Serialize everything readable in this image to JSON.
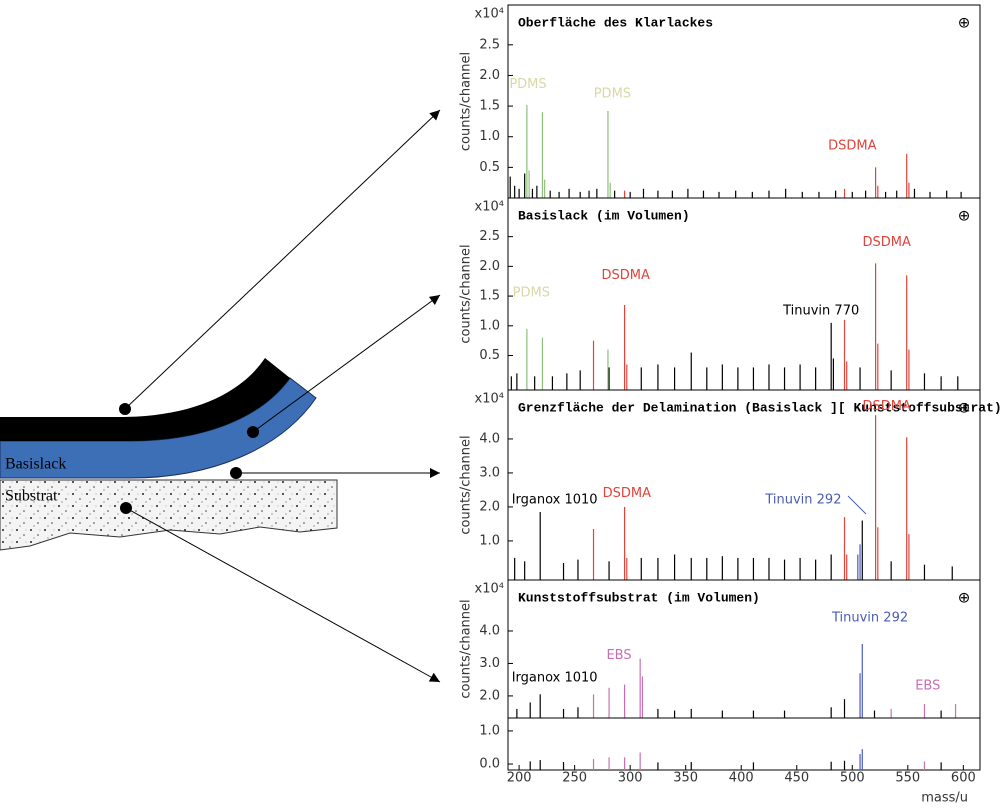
{
  "chart_data": [
    {
      "type": "spectrum",
      "title": "Oberfläche des Klarlackes",
      "y_multiplier": "x10⁴",
      "ylabel": "counts/channel",
      "xlim": [
        190,
        615
      ],
      "ylim": [
        0,
        3.15
      ],
      "yticks": [
        0.5,
        {
          "value": 1,
          "label": "1.0"
        },
        1.5,
        {
          "value": 2,
          "label": "2.0"
        },
        2.5
      ],
      "series": [
        {
          "color": "#000000",
          "x": [
            192,
            196,
            200,
            205,
            212,
            216,
            228,
            236,
            245,
            255,
            263,
            270,
            286,
            300,
            312,
            325,
            338,
            352,
            366,
            380,
            395,
            410,
            425,
            440,
            455,
            470,
            485,
            500,
            512,
            530,
            540,
            556,
            570,
            585,
            598
          ],
          "values": [
            0.35,
            0.2,
            0.15,
            0.4,
            0.15,
            0.2,
            0.12,
            0.1,
            0.15,
            0.1,
            0.12,
            0.15,
            0.12,
            0.1,
            0.15,
            0.12,
            0.12,
            0.15,
            0.12,
            0.1,
            0.12,
            0.1,
            0.12,
            0.15,
            0.1,
            0.1,
            0.12,
            0.1,
            0.12,
            0.1,
            0.12,
            0.15,
            0.1,
            0.12,
            0.1
          ]
        },
        {
          "color": "#8cc07a",
          "x": [
            207,
            209,
            221,
            223,
            280,
            282
          ],
          "values": [
            1.52,
            0.45,
            1.4,
            0.3,
            1.42,
            0.25
          ]
        },
        {
          "color": "#e0443a",
          "x": [
            295,
            493,
            521,
            523,
            549,
            551
          ],
          "values": [
            0.12,
            0.15,
            0.5,
            0.2,
            0.72,
            0.25
          ]
        }
      ],
      "annotations": [
        {
          "text": "PDMS",
          "x": 208,
          "y": 1.85,
          "color": "#d8d8a8"
        },
        {
          "text": "PDMS",
          "x": 284,
          "y": 1.7,
          "color": "#d8d8a8"
        },
        {
          "text": "DSDMA",
          "x": 500,
          "y": 0.85,
          "color": "#e0443a"
        }
      ]
    },
    {
      "type": "spectrum",
      "title": "Basislack (im Volumen)",
      "y_multiplier": "x10⁴",
      "ylabel": "counts/channel",
      "xlim": [
        190,
        615
      ],
      "ylim": [
        -0.08,
        3.15
      ],
      "yticks": [
        0.5,
        {
          "value": 1,
          "label": "1.0"
        },
        1.5,
        {
          "value": 2,
          "label": "2.0"
        },
        2.5
      ],
      "series": [
        {
          "color": "#000000",
          "x": [
            193,
            198,
            214,
            230,
            243,
            255,
            281,
            310,
            325,
            340,
            355,
            369,
            383,
            397,
            411,
            425,
            439,
            453,
            467,
            481,
            483,
            507,
            535,
            565,
            580,
            595
          ],
          "values": [
            0.15,
            0.2,
            0.15,
            0.15,
            0.2,
            0.25,
            0.3,
            0.3,
            0.35,
            0.3,
            0.55,
            0.3,
            0.35,
            0.3,
            0.3,
            0.35,
            0.3,
            0.35,
            0.3,
            1.05,
            0.45,
            0.3,
            0.25,
            0.2,
            0.15,
            0.15
          ]
        },
        {
          "color": "#8cc07a",
          "x": [
            207,
            221,
            280
          ],
          "values": [
            0.95,
            0.8,
            0.6
          ]
        },
        {
          "color": "#e0443a",
          "x": [
            267,
            295,
            297,
            493,
            495,
            521,
            523,
            549,
            551
          ],
          "values": [
            0.75,
            1.35,
            0.35,
            1.1,
            0.4,
            2.05,
            0.7,
            1.85,
            0.6
          ]
        }
      ],
      "annotations": [
        {
          "text": "PDMS",
          "x": 211,
          "y": 1.55,
          "color": "#d8d8a8"
        },
        {
          "text": "DSDMA",
          "x": 296,
          "y": 1.85,
          "color": "#e0443a"
        },
        {
          "text": "Tinuvin 770",
          "x": 472,
          "y": 1.25,
          "color": "#000000"
        },
        {
          "text": "DSDMA",
          "x": 531,
          "y": 2.4,
          "color": "#e0443a"
        }
      ]
    },
    {
      "type": "spectrum",
      "title": "Grenzfläche der Delamination (Basislack ][ Kunststoffsubstrat)",
      "y_multiplier": "x10⁴",
      "ylabel": "counts/channel",
      "xlim": [
        190,
        615
      ],
      "ylim": [
        -0.15,
        5.44
      ],
      "yticks": [
        {
          "value": 1,
          "label": "1.0"
        },
        {
          "value": 2,
          "label": "2.0"
        },
        {
          "value": 3,
          "label": "3.0"
        },
        {
          "value": 4,
          "label": "4.0"
        }
      ],
      "series": [
        {
          "color": "#000000",
          "x": [
            196,
            205,
            219,
            240,
            253,
            281,
            310,
            325,
            340,
            355,
            369,
            383,
            397,
            411,
            425,
            439,
            453,
            467,
            481,
            509,
            535,
            565,
            590
          ],
          "values": [
            0.5,
            0.4,
            1.85,
            0.35,
            0.45,
            0.4,
            0.5,
            0.5,
            0.6,
            0.5,
            0.5,
            0.55,
            0.5,
            0.5,
            0.5,
            0.45,
            0.5,
            0.45,
            0.6,
            1.6,
            0.4,
            0.3,
            0.25
          ]
        },
        {
          "color": "#4a5cb8",
          "x": [
            505,
            507
          ],
          "values": [
            0.6,
            0.9
          ]
        },
        {
          "color": "#e0443a",
          "x": [
            267,
            295,
            297,
            493,
            495,
            521,
            523,
            549,
            551
          ],
          "values": [
            1.35,
            2.0,
            0.5,
            1.7,
            0.6,
            4.7,
            1.4,
            4.05,
            1.2
          ]
        }
      ],
      "annotations": [
        {
          "text": "Irganox 1010",
          "x": 232,
          "y": 2.2,
          "color": "#000000"
        },
        {
          "text": "DSDMA",
          "x": 297,
          "y": 2.4,
          "color": "#e0443a"
        },
        {
          "text": "Tinuvin 292",
          "x": 456,
          "y": 2.2,
          "color": "#4a5cb8"
        },
        {
          "text": "DSDMA",
          "x": 531,
          "y": 4.95,
          "color": "#e0443a"
        }
      ]
    },
    {
      "type": "spectrum",
      "title": "Kunststoffsubstrat (im Volumen)",
      "y_multiplier": "x10⁴",
      "ylabel": "counts/channel",
      "xlim": [
        190,
        615
      ],
      "ylim": [
        1.32,
        5.57
      ],
      "yticks": [
        {
          "value": 2,
          "label": "2.0"
        },
        {
          "value": 3,
          "label": "3.0"
        },
        {
          "value": 4,
          "label": "4.0"
        }
      ],
      "series": [
        {
          "color": "#000000",
          "x": [
            198,
            210,
            219,
            240,
            253,
            325,
            340,
            355,
            383,
            411,
            439,
            481,
            493,
            520,
            580
          ],
          "values": [
            1.6,
            1.8,
            2.05,
            1.6,
            1.65,
            1.6,
            1.55,
            1.6,
            1.55,
            1.55,
            1.55,
            1.65,
            1.9,
            1.55,
            1.55
          ]
        },
        {
          "color": "#4a5cb8",
          "x": [
            507,
            509
          ],
          "values": [
            2.7,
            3.6
          ]
        },
        {
          "color": "#c86fb4",
          "x": [
            267,
            281,
            295,
            309,
            311,
            535,
            565,
            593
          ],
          "values": [
            2.05,
            2.25,
            2.35,
            3.15,
            2.6,
            1.6,
            1.75,
            1.75
          ]
        }
      ],
      "annotations": [
        {
          "text": "Irganox 1010",
          "x": 232,
          "y": 2.55,
          "color": "#000000"
        },
        {
          "text": "EBS",
          "x": 290,
          "y": 3.25,
          "color": "#c86fb4"
        },
        {
          "text": "Tinuvin 292",
          "x": 516,
          "y": 4.4,
          "color": "#4a5cb8"
        },
        {
          "text": "EBS",
          "x": 568,
          "y": 2.3,
          "color": "#c86fb4"
        }
      ]
    },
    {
      "type": "spectrum",
      "xlabel": "mass/u",
      "xlim": [
        190,
        615
      ],
      "ylim": [
        -0.18,
        1.39
      ],
      "xticks": [
        200,
        250,
        300,
        350,
        400,
        450,
        500,
        550,
        600
      ],
      "yticks": [
        {
          "value": 0,
          "label": "0.0"
        },
        {
          "value": 1,
          "label": "1.0"
        }
      ],
      "series": [
        {
          "color": "#000000",
          "x": [
            210,
            219,
            240,
            325,
            355,
            411,
            481,
            493,
            580
          ],
          "values": [
            0.08,
            0.12,
            0.06,
            0.05,
            0.06,
            0.05,
            0.07,
            0.1,
            0.05
          ]
        },
        {
          "color": "#4a5cb8",
          "x": [
            507,
            509
          ],
          "values": [
            0.3,
            0.45
          ]
        },
        {
          "color": "#c86fb4",
          "x": [
            267,
            281,
            295,
            309,
            565
          ],
          "values": [
            0.15,
            0.2,
            0.2,
            0.35,
            0.08
          ]
        }
      ]
    }
  ],
  "diagram": {
    "layers": [
      "Basislack",
      "Substrat"
    ]
  }
}
